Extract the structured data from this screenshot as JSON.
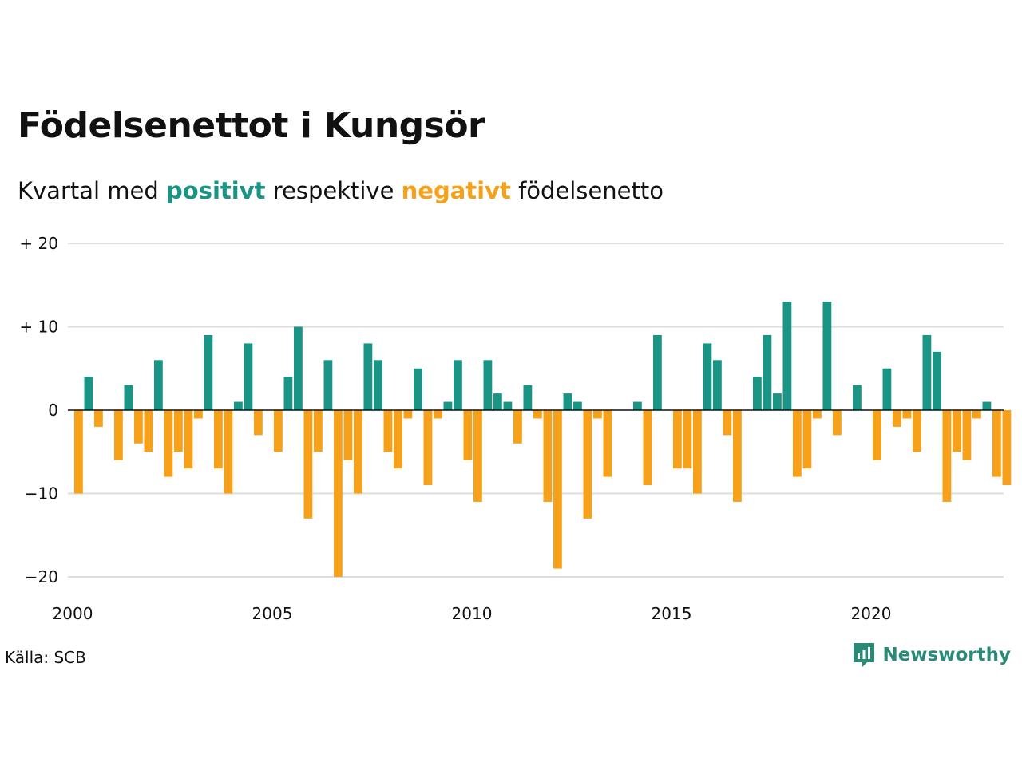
{
  "header": {
    "title": "Födelsenettot i Kungsör",
    "subtitle_prefix": "Kvartal med",
    "subtitle_positive": "positivt",
    "subtitle_middle": "respektive",
    "subtitle_negative": "negativt",
    "subtitle_suffix": "födelsenetto"
  },
  "footer": {
    "source": "Källa: SCB",
    "brand": "Newsworthy",
    "brand_icon": "newsworthy-logo-icon"
  },
  "colors": {
    "positive": "#1a9585",
    "negative": "#f7a11a",
    "grid": "#dddddd",
    "axis": "#111111"
  },
  "chart_data": {
    "type": "bar",
    "title": "Födelsenettot i Kungsör",
    "subtitle": "Kvartal med positivt respektive negativt födelsenetto",
    "xlabel": "",
    "ylabel": "",
    "ylim": [
      -20,
      22
    ],
    "y_ticks": [
      20,
      10,
      0,
      -10,
      -20
    ],
    "y_tick_labels": [
      "+ 20",
      "+ 10",
      "0",
      "−10",
      "−20"
    ],
    "x_ticks": [
      2000,
      2005,
      2010,
      2015,
      2020
    ],
    "x_tick_labels": [
      "2000",
      "2005",
      "2010",
      "2015",
      "2020"
    ],
    "grid": true,
    "legend": "none",
    "categories": [
      "2000K1",
      "2000K2",
      "2000K3",
      "2000K4",
      "2001K1",
      "2001K2",
      "2001K3",
      "2001K4",
      "2002K1",
      "2002K2",
      "2002K3",
      "2002K4",
      "2003K1",
      "2003K2",
      "2003K3",
      "2003K4",
      "2004K1",
      "2004K2",
      "2004K3",
      "2004K4",
      "2005K1",
      "2005K2",
      "2005K3",
      "2005K4",
      "2006K1",
      "2006K2",
      "2006K3",
      "2006K4",
      "2007K1",
      "2007K2",
      "2007K3",
      "2007K4",
      "2008K1",
      "2008K2",
      "2008K3",
      "2008K4",
      "2009K1",
      "2009K2",
      "2009K3",
      "2009K4",
      "2010K1",
      "2010K2",
      "2010K3",
      "2010K4",
      "2011K1",
      "2011K2",
      "2011K3",
      "2011K4",
      "2012K1",
      "2012K2",
      "2012K3",
      "2012K4",
      "2013K1",
      "2013K2",
      "2013K3",
      "2013K4",
      "2014K1",
      "2014K2",
      "2014K3",
      "2014K4",
      "2015K1",
      "2015K2",
      "2015K3",
      "2015K4",
      "2016K1",
      "2016K2",
      "2016K3",
      "2016K4",
      "2017K1",
      "2017K2",
      "2017K3",
      "2017K4",
      "2018K1",
      "2018K2",
      "2018K3",
      "2018K4",
      "2019K1",
      "2019K2",
      "2019K3",
      "2019K4",
      "2020K1",
      "2020K2",
      "2020K3",
      "2020K4",
      "2021K1",
      "2021K2",
      "2021K3",
      "2021K4",
      "2022K1",
      "2022K2",
      "2022K3",
      "2022K4",
      "2023K1",
      "2023K2",
      "2023K3"
    ],
    "values": [
      -10,
      4,
      -2,
      0,
      -6,
      3,
      -4,
      -5,
      6,
      -8,
      -5,
      -7,
      -1,
      9,
      -7,
      -10,
      1,
      8,
      -3,
      0,
      -5,
      4,
      10,
      -13,
      -5,
      6,
      -20,
      -6,
      -10,
      8,
      6,
      -5,
      -7,
      -1,
      5,
      -9,
      -1,
      1,
      6,
      -6,
      -11,
      6,
      2,
      1,
      -4,
      3,
      -1,
      -11,
      -19,
      2,
      1,
      -13,
      -1,
      -8,
      0,
      0,
      1,
      -9,
      9,
      0,
      -7,
      -7,
      -10,
      8,
      6,
      -3,
      -11,
      0,
      4,
      9,
      2,
      13,
      -8,
      -7,
      -1,
      13,
      -3,
      0,
      3,
      0,
      -6,
      5,
      -2,
      -1,
      -5,
      9,
      7,
      -11,
      -5,
      -6,
      -1,
      1,
      -8,
      -9,
      0
    ]
  }
}
